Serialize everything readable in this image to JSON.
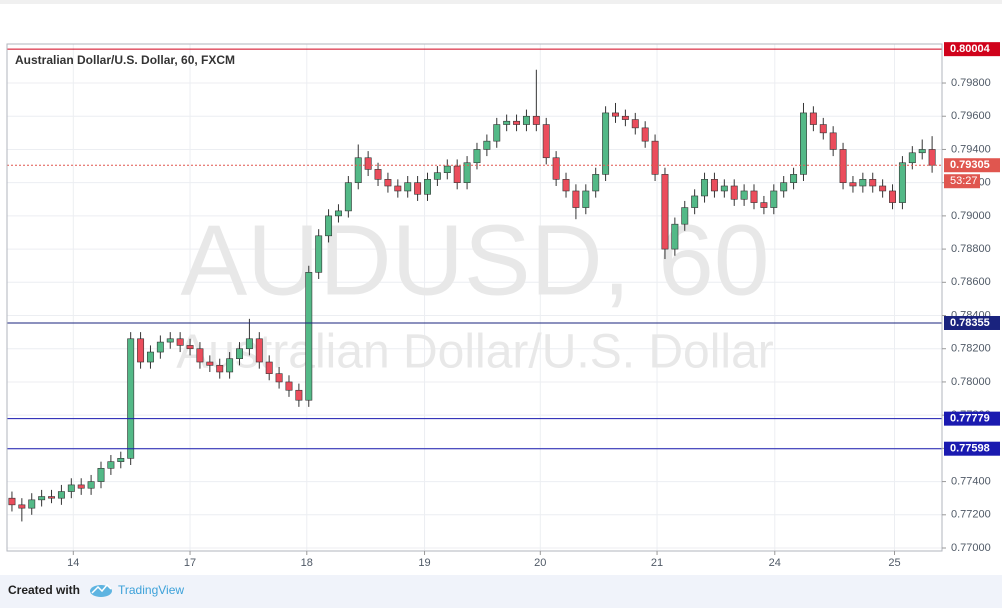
{
  "chart_data": {
    "type": "candlestick",
    "title": "Australian Dollar/U.S. Dollar, 60, FXCM",
    "watermark": {
      "symbol": "AUDUSD, 60",
      "description": "Australian Dollar/U.S. Dollar"
    },
    "open": [
      0.773,
      0.7726,
      0.7724,
      0.7729,
      0.7731,
      0.773,
      0.7734,
      0.7738,
      0.7736,
      0.774,
      0.7748,
      0.7752,
      0.7754,
      0.7826,
      0.7812,
      0.7818,
      0.7824,
      0.7826,
      0.7822,
      0.782,
      0.7812,
      0.781,
      0.7806,
      0.7814,
      0.782,
      0.7826,
      0.7812,
      0.7805,
      0.78,
      0.7795,
      0.7789,
      0.7866,
      0.7888,
      0.79,
      0.7903,
      0.792,
      0.7935,
      0.7928,
      0.7922,
      0.7918,
      0.7915,
      0.792,
      0.7913,
      0.7922,
      0.7926,
      0.793,
      0.792,
      0.7932,
      0.794,
      0.7945,
      0.7955,
      0.7957,
      0.7955,
      0.796,
      0.7955,
      0.7935,
      0.7922,
      0.7915,
      0.7905,
      0.7915,
      0.7925,
      0.7962,
      0.796,
      0.7958,
      0.7953,
      0.7945,
      0.7925,
      0.788,
      0.7895,
      0.7905,
      0.7912,
      0.7922,
      0.7915,
      0.7918,
      0.791,
      0.7915,
      0.7908,
      0.7905,
      0.7915,
      0.792,
      0.7925,
      0.7962,
      0.7955,
      0.795,
      0.794,
      0.792,
      0.7918,
      0.7922,
      0.7918,
      0.7915,
      0.7908,
      0.7932,
      0.7938,
      0.794
    ],
    "high": [
      0.7734,
      0.773,
      0.7733,
      0.7735,
      0.7735,
      0.7738,
      0.7742,
      0.7742,
      0.7744,
      0.7752,
      0.7756,
      0.7758,
      0.783,
      0.783,
      0.7822,
      0.7828,
      0.783,
      0.783,
      0.7826,
      0.7824,
      0.7816,
      0.7814,
      0.7818,
      0.7824,
      0.7838,
      0.783,
      0.7816,
      0.7809,
      0.7804,
      0.7799,
      0.787,
      0.7892,
      0.7904,
      0.7907,
      0.7924,
      0.7943,
      0.7939,
      0.7932,
      0.7926,
      0.7922,
      0.7924,
      0.7924,
      0.7926,
      0.793,
      0.7934,
      0.7934,
      0.7936,
      0.7944,
      0.7949,
      0.7959,
      0.7961,
      0.7961,
      0.7964,
      0.7988,
      0.7959,
      0.7939,
      0.7926,
      0.7919,
      0.7919,
      0.7929,
      0.7966,
      0.7968,
      0.7964,
      0.7962,
      0.7957,
      0.7949,
      0.7929,
      0.7899,
      0.7909,
      0.7916,
      0.7926,
      0.7926,
      0.7922,
      0.7922,
      0.7919,
      0.7919,
      0.7912,
      0.7919,
      0.7924,
      0.7929,
      0.7968,
      0.7966,
      0.7959,
      0.7954,
      0.7944,
      0.7924,
      0.7926,
      0.7926,
      0.7922,
      0.7919,
      0.7936,
      0.7942,
      0.7946,
      0.7948
    ],
    "low": [
      0.7722,
      0.7716,
      0.772,
      0.7725,
      0.7727,
      0.7726,
      0.773,
      0.7732,
      0.7732,
      0.7736,
      0.7744,
      0.7748,
      0.775,
      0.7808,
      0.7808,
      0.7814,
      0.782,
      0.7818,
      0.7816,
      0.7808,
      0.7806,
      0.7802,
      0.7802,
      0.781,
      0.7816,
      0.7808,
      0.7801,
      0.7796,
      0.7791,
      0.7785,
      0.7785,
      0.7862,
      0.7884,
      0.7896,
      0.7899,
      0.7916,
      0.7924,
      0.7918,
      0.7914,
      0.7911,
      0.7911,
      0.7909,
      0.7909,
      0.7918,
      0.7922,
      0.7916,
      0.7916,
      0.7928,
      0.7936,
      0.7941,
      0.7951,
      0.7951,
      0.7951,
      0.7951,
      0.7931,
      0.7918,
      0.7911,
      0.7898,
      0.7901,
      0.7911,
      0.7921,
      0.7956,
      0.7954,
      0.7949,
      0.7941,
      0.7921,
      0.7874,
      0.7876,
      0.7891,
      0.7901,
      0.7908,
      0.7911,
      0.7911,
      0.7906,
      0.7906,
      0.7904,
      0.7901,
      0.7901,
      0.7911,
      0.7916,
      0.7921,
      0.7951,
      0.7946,
      0.7936,
      0.7916,
      0.7914,
      0.7914,
      0.7914,
      0.7911,
      0.7904,
      0.7904,
      0.7928,
      0.7934,
      0.7926
    ],
    "close": [
      0.7726,
      0.7724,
      0.7729,
      0.7731,
      0.773,
      0.7734,
      0.7738,
      0.7736,
      0.774,
      0.7748,
      0.7752,
      0.7754,
      0.7826,
      0.7812,
      0.7818,
      0.7824,
      0.7826,
      0.7822,
      0.782,
      0.7812,
      0.781,
      0.7806,
      0.7814,
      0.782,
      0.7826,
      0.7812,
      0.7805,
      0.78,
      0.7795,
      0.7789,
      0.7866,
      0.7888,
      0.79,
      0.7903,
      0.792,
      0.7935,
      0.7928,
      0.7922,
      0.7918,
      0.7915,
      0.792,
      0.7913,
      0.7922,
      0.7926,
      0.793,
      0.792,
      0.7932,
      0.794,
      0.7945,
      0.7955,
      0.7957,
      0.7955,
      0.796,
      0.7955,
      0.7935,
      0.7922,
      0.7915,
      0.7905,
      0.7915,
      0.7925,
      0.7962,
      0.796,
      0.7958,
      0.7953,
      0.7945,
      0.7925,
      0.788,
      0.7895,
      0.7905,
      0.7912,
      0.7922,
      0.7915,
      0.7918,
      0.791,
      0.7915,
      0.7908,
      0.7905,
      0.7915,
      0.792,
      0.7925,
      0.7962,
      0.7955,
      0.795,
      0.794,
      0.792,
      0.7918,
      0.7922,
      0.7918,
      0.7915,
      0.7908,
      0.7932,
      0.7938,
      0.794,
      0.79305
    ],
    "up_color": "#53b987",
    "down_color": "#eb4d5c",
    "xlim": [
      0,
      94.5
    ],
    "xticks": [
      {
        "value": 6.7,
        "label": "14"
      },
      {
        "value": 18.5,
        "label": "17"
      },
      {
        "value": 30.3,
        "label": "18"
      },
      {
        "value": 42.2,
        "label": "19"
      },
      {
        "value": 53.9,
        "label": "20"
      },
      {
        "value": 65.7,
        "label": "21"
      },
      {
        "value": 77.6,
        "label": "24"
      },
      {
        "value": 89.7,
        "label": "25"
      }
    ],
    "ylim": [
      0.76982,
      0.80035
    ],
    "yticks": [
      {
        "value": 0.77,
        "label": "0.77000"
      },
      {
        "value": 0.772,
        "label": "0.77200"
      },
      {
        "value": 0.774,
        "label": "0.77400"
      },
      {
        "value": 0.776,
        "label": "0.77600"
      },
      {
        "value": 0.778,
        "label": "0.77800"
      },
      {
        "value": 0.78,
        "label": "0.78000"
      },
      {
        "value": 0.782,
        "label": "0.78200"
      },
      {
        "value": 0.784,
        "label": "0.78400"
      },
      {
        "value": 0.786,
        "label": "0.78600"
      },
      {
        "value": 0.788,
        "label": "0.78800"
      },
      {
        "value": 0.79,
        "label": "0.79000"
      },
      {
        "value": 0.792,
        "label": "0.79200"
      },
      {
        "value": 0.794,
        "label": "0.79400"
      },
      {
        "value": 0.796,
        "label": "0.79600"
      },
      {
        "value": 0.798,
        "label": "0.79800"
      }
    ],
    "grid": true,
    "levels": [
      {
        "value": 0.80004,
        "color": "#d0021b"
      },
      {
        "value": 0.78355,
        "color": "#1a237e"
      },
      {
        "value": 0.77779,
        "color": "#1a1ab0"
      },
      {
        "value": 0.77598,
        "color": "#1a1ab0"
      }
    ],
    "last_price": {
      "value": 0.79305,
      "color": "#e0564f",
      "countdown": "53:27"
    }
  },
  "footer": {
    "created_with": "Created with",
    "brand": "TradingView"
  }
}
